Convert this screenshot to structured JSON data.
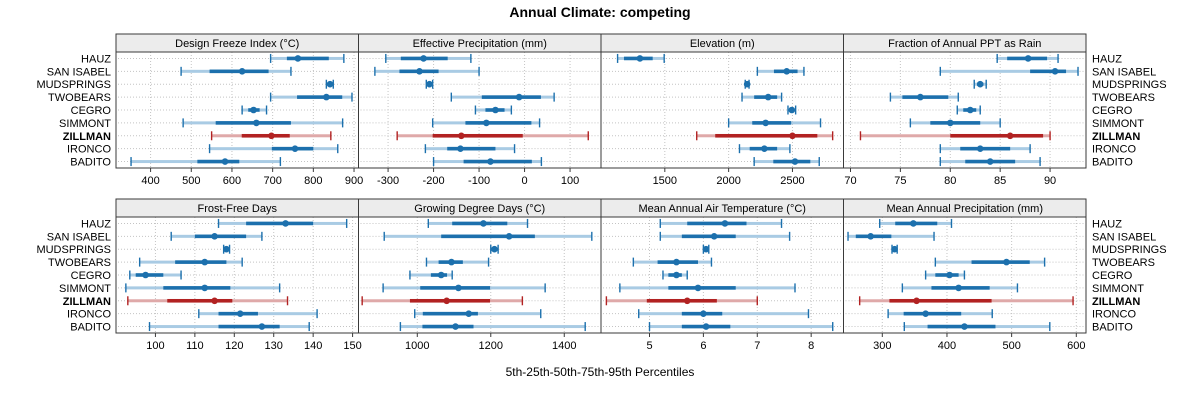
{
  "title": "Annual Climate: competing",
  "footer_label": "5th-25th-50th-75th-95th Percentiles",
  "stations": [
    "HAUZ",
    "SAN ISABEL",
    "MUDSPRINGS",
    "TWOBEARS",
    "CEGRO",
    "SIMMONT",
    "ZILLMAN",
    "IRONCO",
    "BADITO"
  ],
  "highlight_station": "ZILLMAN",
  "colors": {
    "series_blue": "#1c70ad",
    "series_blue_light": "#a9cbe4",
    "highlight_red": "#b22222",
    "highlight_red_light": "#dfa9a9",
    "strip_bg": "#ececec",
    "panel_border": "#3a3a3a",
    "grid": "#c4c4c4",
    "text": "#000000"
  },
  "chart_data": {
    "type": "dotplot-trellis",
    "title": "Annual Climate: competing",
    "xlabel": "5th-25th-50th-75th-95th Percentiles",
    "percentiles": [
      5,
      25,
      50,
      75,
      95
    ],
    "station_order_top_to_bottom": [
      "HAUZ",
      "SAN ISABEL",
      "MUDSPRINGS",
      "TWOBEARS",
      "CEGRO",
      "SIMMONT",
      "ZILLMAN",
      "IRONCO",
      "BADITO"
    ],
    "legend_position": "none",
    "grid": "dotted",
    "panels": [
      {
        "title": "Design Freeze Index (°C)",
        "xlim": [
          315,
          911
        ],
        "ticks": [
          400,
          500,
          600,
          700,
          800,
          900
        ],
        "values": [
          [
            695,
            735,
            762,
            838,
            875
          ],
          [
            475,
            545,
            625,
            690,
            745
          ],
          [
            832,
            837,
            841,
            845,
            849
          ],
          [
            695,
            760,
            832,
            871,
            895
          ],
          [
            625,
            640,
            653,
            668,
            685
          ],
          [
            480,
            560,
            660,
            745,
            872
          ],
          [
            550,
            624,
            697,
            742,
            843
          ],
          [
            545,
            698,
            755,
            800,
            860
          ],
          [
            352,
            515,
            583,
            618,
            719
          ]
        ]
      },
      {
        "title": "Effective Precipitation (mm)",
        "xlim": [
          -365,
          168
        ],
        "ticks": [
          -300,
          -200,
          -100,
          0,
          100
        ],
        "values": [
          [
            -305,
            -272,
            -222,
            -169,
            -118
          ],
          [
            -329,
            -275,
            -231,
            -189,
            -100
          ],
          [
            -216,
            -212,
            -209,
            -206,
            -202
          ],
          [
            -161,
            -94,
            -12,
            36,
            65
          ],
          [
            -108,
            -86,
            -64,
            -44,
            -29
          ],
          [
            -202,
            -130,
            -84,
            15,
            33
          ],
          [
            -280,
            -202,
            -139,
            -4,
            140
          ],
          [
            -218,
            -170,
            -141,
            -64,
            -22
          ],
          [
            -200,
            -134,
            -75,
            16,
            37
          ]
        ]
      },
      {
        "title": "Elevation (m)",
        "xlim": [
          1000,
          2900
        ],
        "ticks": [
          1500,
          2000,
          2500
        ],
        "values": [
          [
            1130,
            1180,
            1305,
            1405,
            1495
          ],
          [
            2225,
            2355,
            2455,
            2540,
            2590
          ],
          [
            2130,
            2138,
            2145,
            2152,
            2160
          ],
          [
            2105,
            2200,
            2310,
            2380,
            2415
          ],
          [
            2465,
            2480,
            2495,
            2510,
            2525
          ],
          [
            2000,
            2185,
            2290,
            2490,
            2720
          ],
          [
            1750,
            1895,
            2500,
            2695,
            2815
          ],
          [
            2085,
            2165,
            2280,
            2380,
            2480
          ],
          [
            2200,
            2350,
            2520,
            2640,
            2710
          ]
        ]
      },
      {
        "title": "Fraction of Annual PPT as Rain",
        "xlim": [
          69.3,
          93.6
        ],
        "ticks": [
          70,
          75,
          80,
          85,
          90
        ],
        "values": [
          [
            84.7,
            85.7,
            87.8,
            89.7,
            90.8
          ],
          [
            79,
            88,
            90.5,
            91.6,
            92.8
          ],
          [
            82.4,
            82.7,
            83,
            83.3,
            83.6
          ],
          [
            74,
            75.2,
            77,
            79.8,
            80.8
          ],
          [
            80.7,
            81.3,
            82,
            82.6,
            83
          ],
          [
            76,
            78,
            80,
            83,
            85
          ],
          [
            71,
            80,
            86,
            89.3,
            90
          ],
          [
            79,
            81,
            83,
            86,
            88
          ],
          [
            79,
            81.5,
            84,
            86.5,
            89
          ]
        ]
      },
      {
        "title": "Frost-Free Days",
        "xlim": [
          90,
          151.5
        ],
        "ticks": [
          100,
          110,
          120,
          130,
          140,
          150
        ],
        "values": [
          [
            116,
            123,
            133,
            140,
            148.5
          ],
          [
            104,
            110,
            115,
            123,
            127
          ],
          [
            117.3,
            117.7,
            118,
            118.4,
            118.8
          ],
          [
            96,
            105,
            112.5,
            118,
            122
          ],
          [
            93.5,
            95,
            97.5,
            102,
            106.5
          ],
          [
            92.5,
            102,
            112.5,
            119,
            131.5
          ],
          [
            93,
            103,
            115,
            119.5,
            133.5
          ],
          [
            111,
            116,
            121.5,
            126,
            141
          ],
          [
            98.5,
            116,
            127,
            131.5,
            139
          ]
        ]
      },
      {
        "title": "Growing Degree Days (°C)",
        "xlim": [
          840,
          1500
        ],
        "ticks": [
          1000,
          1200,
          1400
        ],
        "values": [
          [
            1030,
            1095,
            1180,
            1245,
            1300
          ],
          [
            910,
            1065,
            1250,
            1320,
            1475
          ],
          [
            1200,
            1205,
            1210,
            1215,
            1220
          ],
          [
            1025,
            1058,
            1093,
            1124,
            1194
          ],
          [
            980,
            1037,
            1065,
            1081,
            1095
          ],
          [
            907,
            1008,
            1112,
            1198,
            1348
          ],
          [
            850,
            980,
            1080,
            1198,
            1286
          ],
          [
            993,
            1015,
            1140,
            1165,
            1336
          ],
          [
            954,
            1014,
            1104,
            1153,
            1457
          ]
        ]
      },
      {
        "title": "Mean Annual Air Temperature (°C)",
        "xlim": [
          4.1,
          8.6
        ],
        "ticks": [
          5,
          6,
          7,
          8
        ],
        "values": [
          [
            5.2,
            5.7,
            6.4,
            6.8,
            7.45
          ],
          [
            5.2,
            5.6,
            6.2,
            6.6,
            7.6
          ],
          [
            6.0,
            6.03,
            6.05,
            6.08,
            6.1
          ],
          [
            4.7,
            5.15,
            5.5,
            5.9,
            6.15
          ],
          [
            5.25,
            5.35,
            5.5,
            5.6,
            5.7
          ],
          [
            4.45,
            5.35,
            5.9,
            6.6,
            7.7
          ],
          [
            4.2,
            4.95,
            5.7,
            6.25,
            7.0
          ],
          [
            4.8,
            5.6,
            6.0,
            6.35,
            7.95
          ],
          [
            5.0,
            5.6,
            6.05,
            6.5,
            8.4
          ]
        ]
      },
      {
        "title": "Mean Annual Precipitation (mm)",
        "xlim": [
          240,
          615
        ],
        "ticks": [
          300,
          400,
          500,
          600
        ],
        "values": [
          [
            296,
            320,
            348,
            385,
            407
          ],
          [
            247,
            259,
            282,
            314,
            380
          ],
          [
            315,
            317,
            319,
            321,
            323
          ],
          [
            382,
            438,
            492,
            528,
            551
          ],
          [
            367,
            382,
            404,
            418,
            427
          ],
          [
            331,
            376,
            418,
            466,
            509
          ],
          [
            265,
            311,
            353,
            469,
            595
          ],
          [
            309,
            333,
            367,
            422,
            470
          ],
          [
            334,
            370,
            427,
            475,
            559
          ]
        ]
      }
    ]
  }
}
